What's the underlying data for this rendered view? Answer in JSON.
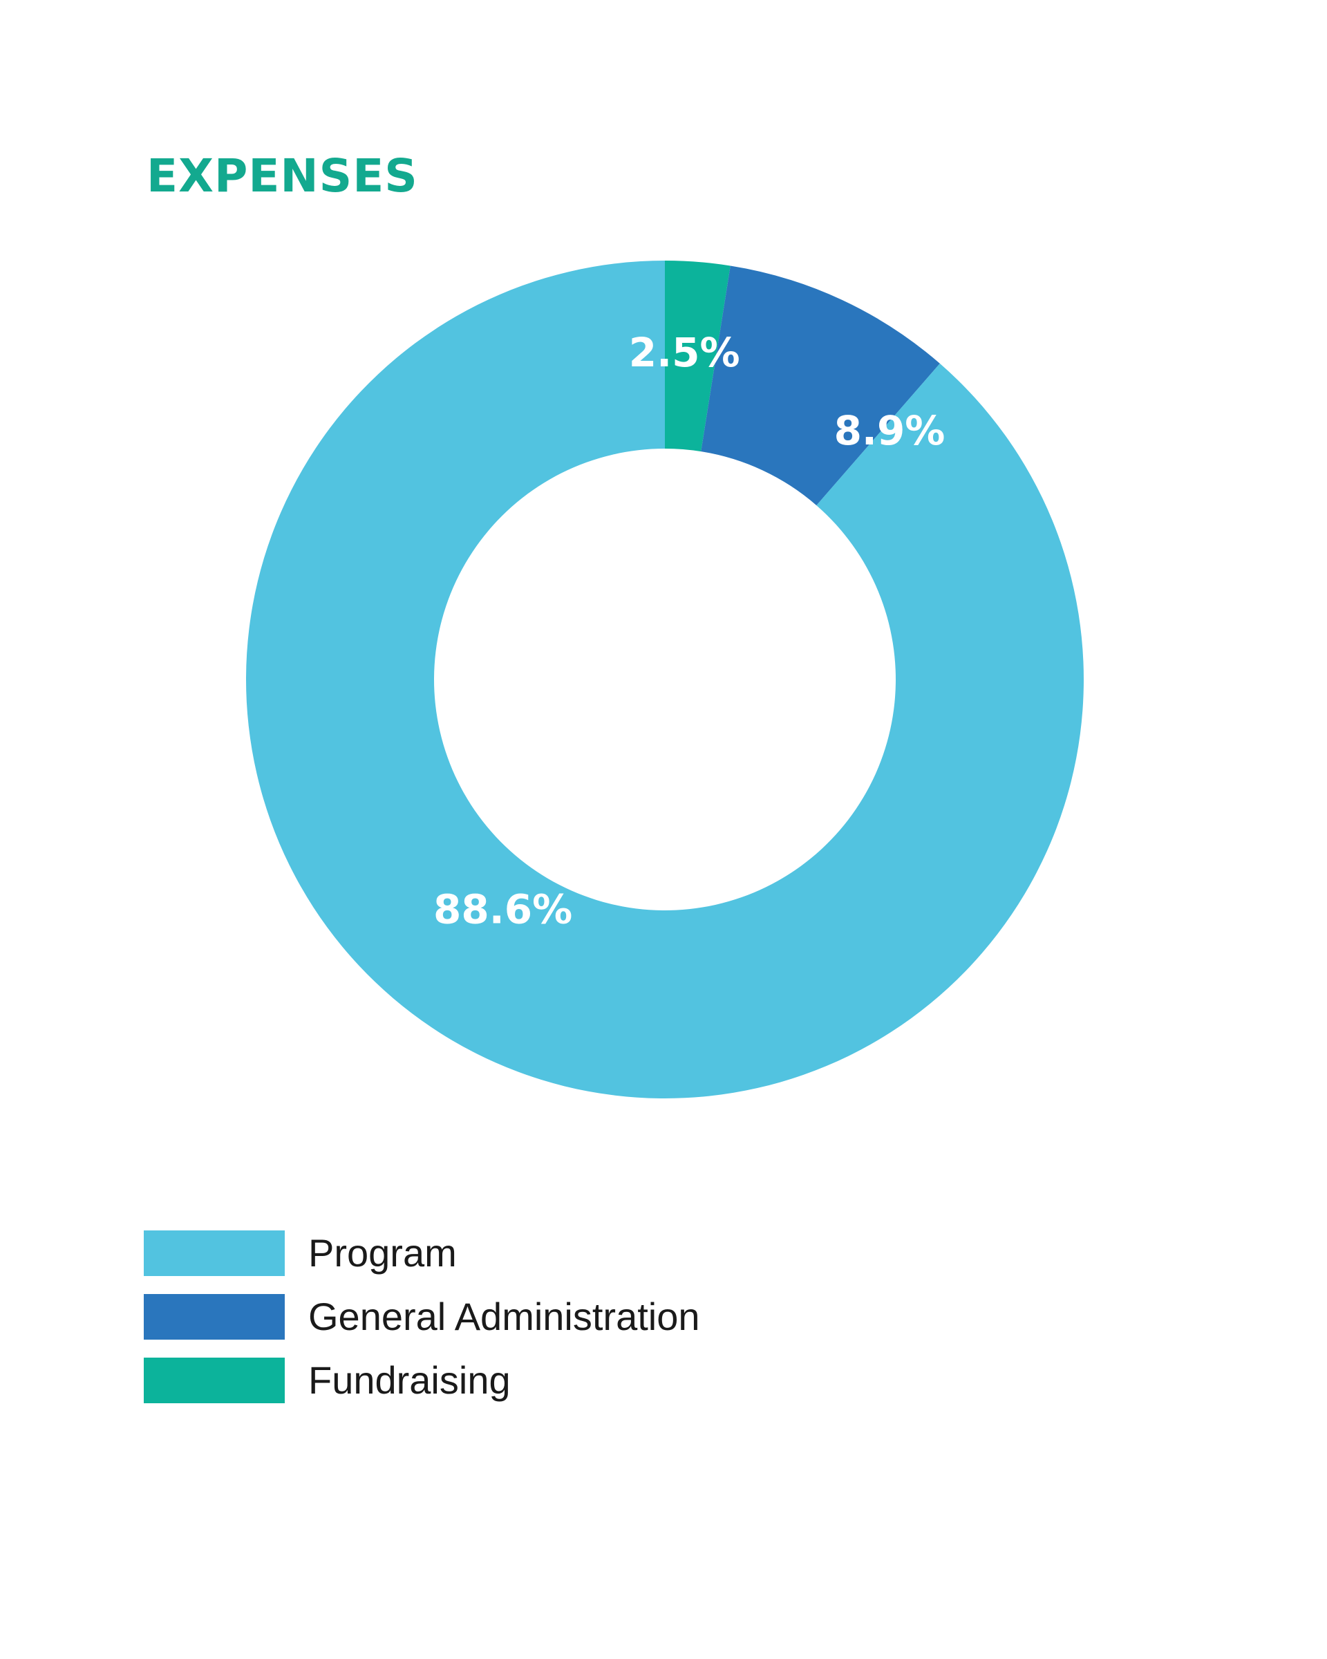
{
  "chart_data": {
    "type": "pie",
    "title": "EXPENSES",
    "categories": [
      "Program",
      "General Administration",
      "Fundraising"
    ],
    "values": [
      88.6,
      8.9,
      2.5
    ],
    "value_labels": [
      "88.6%",
      "8.9%",
      "2.5%"
    ],
    "unit": "%",
    "donut": true,
    "legend_position": "bottom-left",
    "colors": [
      "#52c3e0",
      "#2a76bd",
      "#0cb39b"
    ]
  },
  "style": {
    "title_color": "#13a98f"
  }
}
